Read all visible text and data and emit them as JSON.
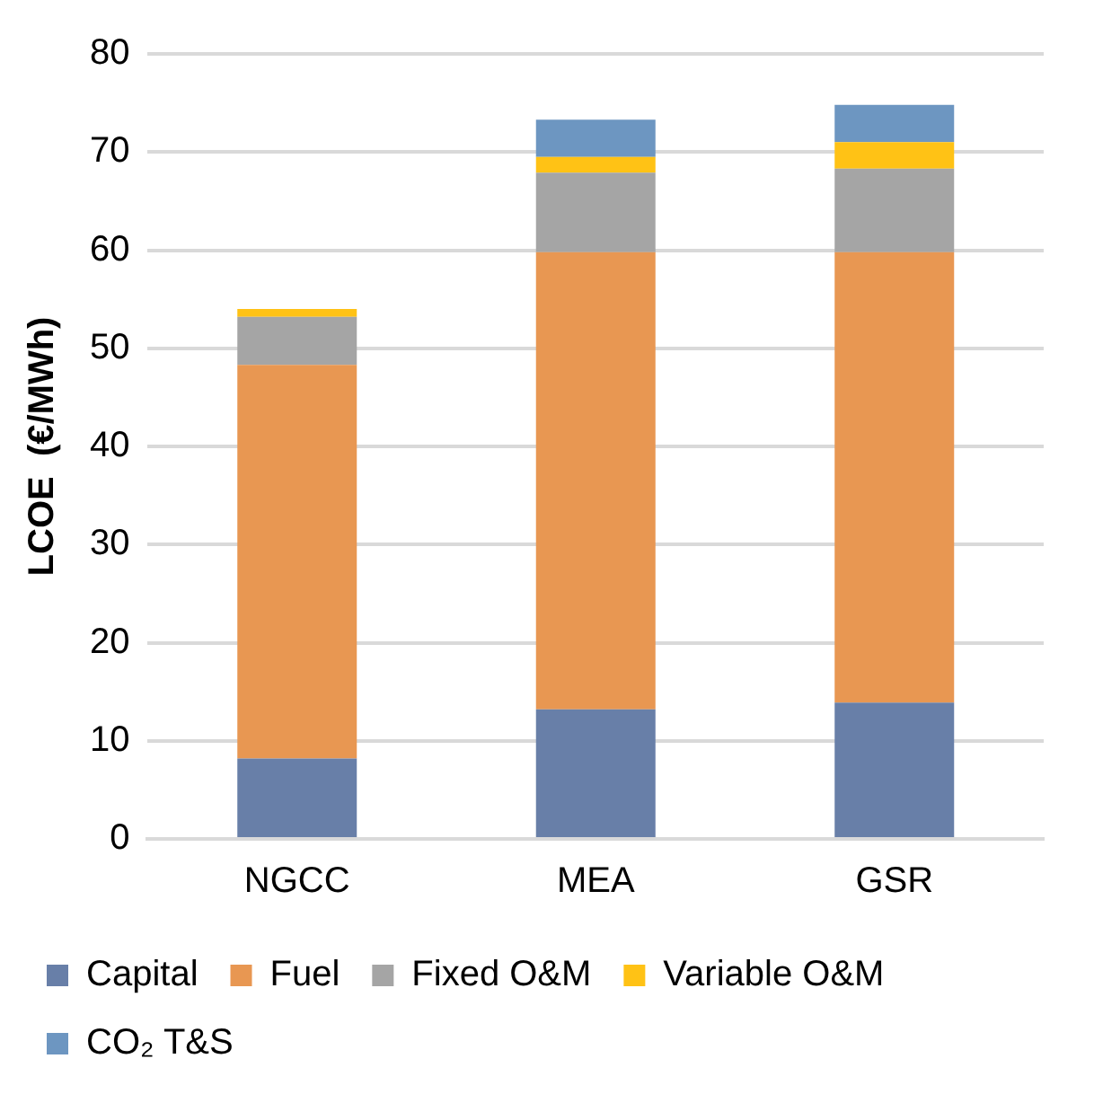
{
  "chart_data": {
    "type": "bar",
    "stacked": true,
    "ylabel": "LCOE  (€/MWh)",
    "categories": [
      "NGCC",
      "MEA",
      "GSR"
    ],
    "series": [
      {
        "name": "Capital",
        "color": "#687fa8",
        "values": [
          8.2,
          13.2,
          13.9
        ]
      },
      {
        "name": "Fuel",
        "color": "#e89752",
        "values": [
          40.1,
          46.6,
          45.9
        ]
      },
      {
        "name": "Fixed O&M",
        "color": "#a5a5a5",
        "values": [
          4.9,
          8.1,
          8.5
        ]
      },
      {
        "name": "Variable O&M",
        "color": "#ffc215",
        "values": [
          0.8,
          1.6,
          2.7
        ]
      },
      {
        "name": "CO₂ T&S",
        "color": "#6d96c1",
        "values": [
          0,
          3.8,
          3.8
        ]
      }
    ],
    "ylim": [
      0,
      80
    ],
    "yticks": [
      0,
      10,
      20,
      30,
      40,
      50,
      60,
      70,
      80
    ],
    "grid": "y",
    "legend": "bottom"
  }
}
